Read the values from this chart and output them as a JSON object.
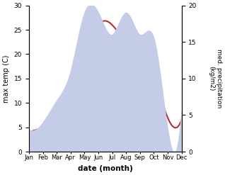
{
  "months": [
    "Jan",
    "Feb",
    "Mar",
    "Apr",
    "May",
    "Jun",
    "Jul",
    "Aug",
    "Sep",
    "Oct",
    "Nov",
    "Dec"
  ],
  "max_temp": [
    4.0,
    5.0,
    7.5,
    13.0,
    19.5,
    26.0,
    26.0,
    23.0,
    22.5,
    16.0,
    7.0,
    6.5
  ],
  "precipitation": [
    3.0,
    4.0,
    7.0,
    11.0,
    19.0,
    19.0,
    16.0,
    19.0,
    16.0,
    15.5,
    3.0,
    5.5
  ],
  "temp_color": "#b03030",
  "precip_fill_color": "#c5cce8",
  "precip_edge_color": "#c5cce8",
  "temp_ylim": [
    0,
    30
  ],
  "precip_ylim": [
    0,
    20
  ],
  "temp_yticks": [
    0,
    5,
    10,
    15,
    20,
    25,
    30
  ],
  "precip_yticks": [
    0,
    5,
    10,
    15,
    20
  ],
  "xlabel": "date (month)",
  "ylabel_left": "max temp (C)",
  "ylabel_right": "med. precipitation\n(kg/m2)",
  "background_color": "#ffffff",
  "fig_width": 3.18,
  "fig_height": 2.47,
  "dpi": 100
}
